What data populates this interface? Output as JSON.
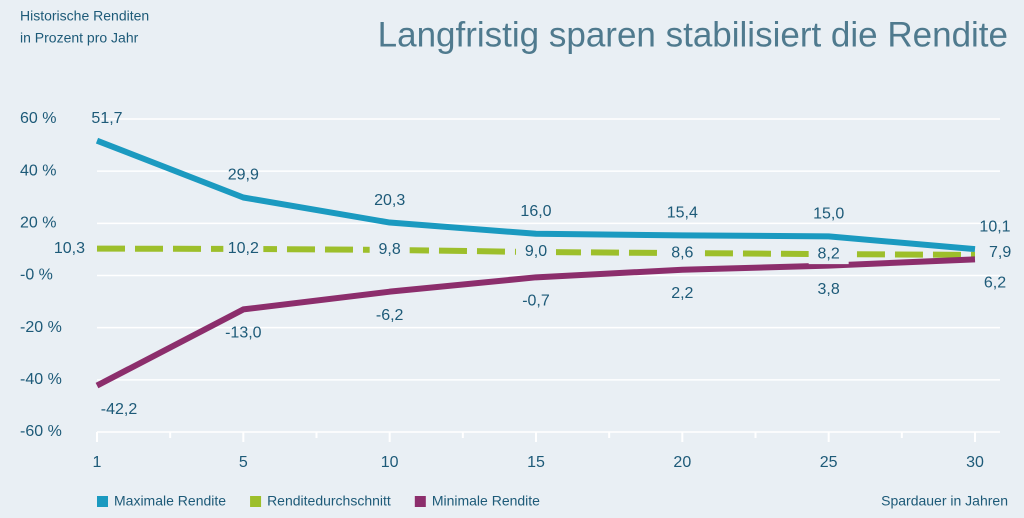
{
  "chart_data": {
    "type": "line",
    "title": "Langfristig sparen stabilisiert die Rendite",
    "y_axis_label": [
      "Historische Renditen",
      "in Prozent pro Jahr"
    ],
    "x_axis_label": "Spardauer in Jahren",
    "categories": [
      "1",
      "5",
      "10",
      "15",
      "20",
      "25",
      "30"
    ],
    "series": [
      {
        "name": "Maximale Rendite",
        "color": "#1b9ac0",
        "dashed": false,
        "values": [
          51.7,
          29.9,
          20.3,
          16.0,
          15.4,
          15.0,
          10.1
        ],
        "value_labels": [
          "51,7",
          "29,9",
          "20,3",
          "16,0",
          "15,4",
          "15,0",
          "10,1"
        ]
      },
      {
        "name": "Renditedurchschnitt",
        "color": "#9dbf2b",
        "dashed": true,
        "values": [
          10.3,
          10.2,
          9.8,
          9.0,
          8.6,
          8.2,
          7.9
        ],
        "value_labels": [
          "10,3",
          "10,2",
          "9,8",
          "9,0",
          "8,6",
          "8,2",
          "7,9"
        ]
      },
      {
        "name": "Minimale Rendite",
        "color": "#8c2e6c",
        "dashed": false,
        "values": [
          -42.2,
          -13.0,
          -6.2,
          -0.7,
          2.2,
          3.8,
          6.2
        ],
        "value_labels": [
          "-42,2",
          "-13,0",
          "-6,2",
          "-0,7",
          "2,2",
          "3,8",
          "6,2"
        ]
      }
    ],
    "ylim": [
      -60,
      60
    ],
    "yticks": [
      {
        "value": -60,
        "label": "-60 %"
      },
      {
        "value": -40,
        "label": "-40 %"
      },
      {
        "value": -20,
        "label": "-20 %"
      },
      {
        "value": 0,
        "label": "-0 %"
      },
      {
        "value": 20,
        "label": "20 %"
      },
      {
        "value": 40,
        "label": "40 %"
      },
      {
        "value": 60,
        "label": "60 %"
      }
    ],
    "grid": true
  }
}
